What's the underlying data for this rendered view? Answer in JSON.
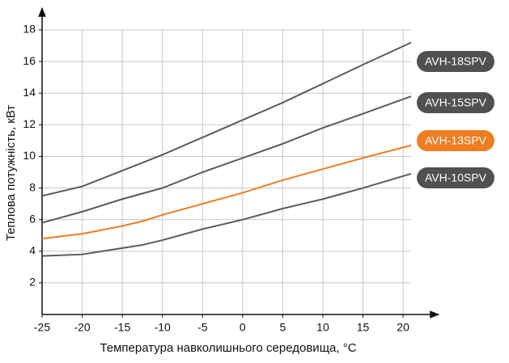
{
  "chart_data": {
    "type": "line",
    "xlabel": "Температура навколишнього середовища, °C",
    "ylabel": "Теплова потужність, кВт",
    "x": [
      -25,
      -20,
      -15,
      -12.5,
      -10,
      -5,
      0,
      5,
      10,
      15,
      21
    ],
    "series": [
      {
        "name": "AVH-18SPV",
        "color": "#5a5a5a",
        "values": [
          7.5,
          8.1,
          9.1,
          9.6,
          10.1,
          11.2,
          12.3,
          13.4,
          14.6,
          15.8,
          17.2
        ]
      },
      {
        "name": "AVH-15SPV",
        "color": "#5a5a5a",
        "values": [
          5.8,
          6.5,
          7.3,
          7.65,
          8.0,
          9.0,
          9.9,
          10.8,
          11.8,
          12.7,
          13.8
        ]
      },
      {
        "name": "AVH-13SPV",
        "color": "#ef7d22",
        "values": [
          4.8,
          5.1,
          5.6,
          5.9,
          6.3,
          7.0,
          7.7,
          8.5,
          9.2,
          9.9,
          10.7
        ]
      },
      {
        "name": "AVH-10SPV",
        "color": "#5a5a5a",
        "values": [
          3.7,
          3.8,
          4.2,
          4.4,
          4.7,
          5.4,
          6.0,
          6.7,
          7.3,
          8.0,
          8.9
        ]
      }
    ],
    "xlim": [
      -25,
      21
    ],
    "ylim": [
      0,
      18
    ],
    "xticks": [
      -25,
      -20,
      -15,
      -10,
      -5,
      0,
      5,
      10,
      15,
      20
    ],
    "yticks": [
      2,
      4,
      6,
      8,
      10,
      12,
      14,
      16,
      18
    ],
    "grid": true
  }
}
